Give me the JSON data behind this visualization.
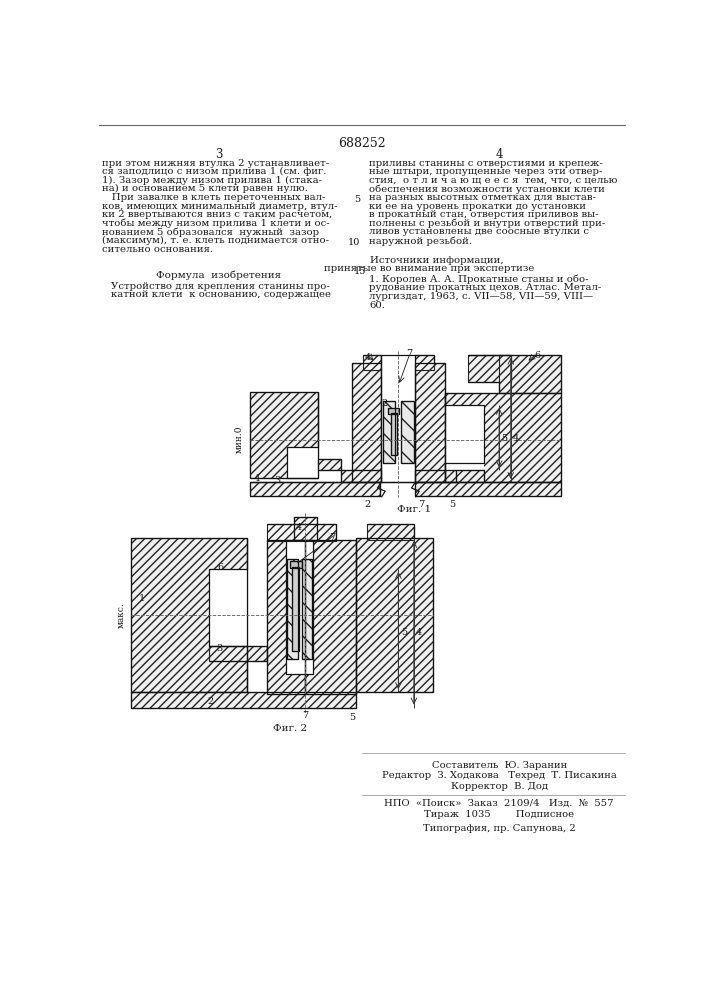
{
  "patent_number": "688252",
  "col_left_number": "3",
  "col_right_number": "4",
  "col_left_text": [
    "при этом нижняя втулка 2 устанавливает-",
    "ся заподлицо с низом прилива 1 (см. фиг.",
    "1). Зазор между низом прилива 1 (стака-",
    "на) и основанием 5 клети равен нулю.",
    "   При завалке в клеть переточенных вал-",
    "ков, имеющих минимальный диаметр, втул-",
    "ки 2 ввертываются вниз с таким расчетом,",
    "чтобы между низом прилива 1 клети и ос-",
    "нованием 5 образовался  нужный  зазор",
    "(максимум), т. е. клеть поднимается отно-",
    "сительно основания."
  ],
  "col_right_text": [
    "приливы станины с отверстиями и крепеж-",
    "ные штыри, пропущенные через эти отвер-",
    "стия,  о т л и ч а ю щ е е с я  тем, что, с целью",
    "обеспечения возможности установки клети",
    "на разных высотных отметках для выстав-",
    "ки ее на уровень прокатки до установки",
    "в прокатный стан, отверстия приливов вы-",
    "полнены с резьбой и внутри отверстий при-",
    "ливов установлены две соосные втулки с",
    "наружной резьбой."
  ],
  "sources_header": "Источники информации,",
  "sources_subheader": "принятые во внимание при экспертизе",
  "sources_text": [
    "1. Королев А. А. Прокатные станы и обо-",
    "рудование прокатных цехов. Атлас. Метал-",
    "лургиздат, 1963, с. VII—58, VII—59, VIII—",
    "60."
  ],
  "formula_header": "Формула  изобретения",
  "formula_text": [
    "Устройство для крепления станины про-",
    "катной клети  к основанию, содержащее"
  ],
  "line_num_5": "5",
  "line_num_10": "10",
  "line_num_15": "15",
  "fig1_caption": "Фиг. 1",
  "fig2_caption": "Фиг. 2",
  "footer_line1": "Составитель  Ю. Заранин",
  "footer_line2": "Редактор  З. Ходакова   Техред  Т. Писакина",
  "footer_line3": "Корректор  В. Дод",
  "footer_line4": "НПО  «Поиск»  Заказ  2109/4   Изд.  №  557",
  "footer_line5": "Тираж  1035        Подписное",
  "footer_line6": "Типография, пр. Сапунова, 2",
  "background_color": "#ffffff",
  "text_color": "#1a1a1a",
  "hatch_color": "#444444"
}
